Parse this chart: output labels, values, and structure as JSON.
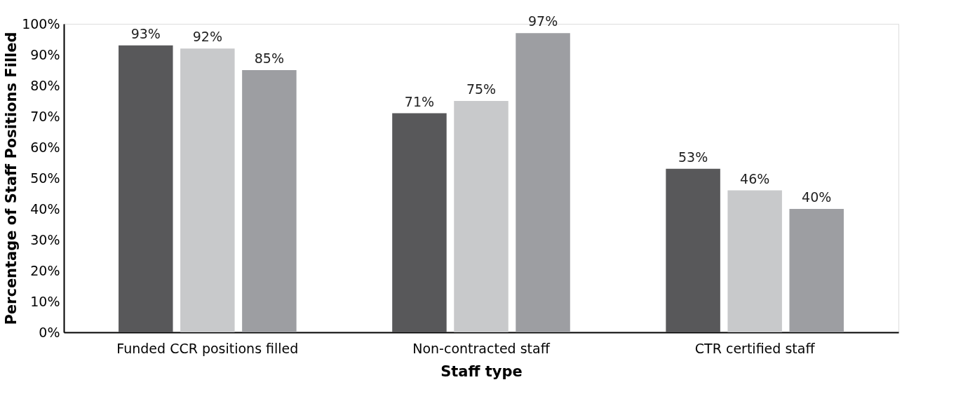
{
  "chart_data": {
    "type": "bar",
    "xlabel": "Staff type",
    "ylabel": "Percentage of Staff Positions Filled",
    "categories": [
      "Funded CCR positions filled",
      "Non-contracted staff",
      "CTR certified staff"
    ],
    "series": [
      {
        "color": "#58585a",
        "values": [
          93,
          71,
          53
        ],
        "value_labels": [
          "93%",
          "71%",
          "53%"
        ]
      },
      {
        "color": "#c8c9cb",
        "values": [
          92,
          75,
          46
        ],
        "value_labels": [
          "92%",
          "75%",
          "46%"
        ]
      },
      {
        "color": "#9d9ea2",
        "values": [
          85,
          97,
          40
        ],
        "value_labels": [
          "85%",
          "97%",
          "40%"
        ]
      }
    ],
    "ylim": [
      0,
      100
    ],
    "yticks": [
      {
        "value": 0,
        "label": "0%"
      },
      {
        "value": 10,
        "label": "10%"
      },
      {
        "value": 20,
        "label": "20%"
      },
      {
        "value": 30,
        "label": "30%"
      },
      {
        "value": 40,
        "label": "40%"
      },
      {
        "value": 50,
        "label": "50%"
      },
      {
        "value": 60,
        "label": "60%"
      },
      {
        "value": 70,
        "label": "70%"
      },
      {
        "value": 80,
        "label": "80%"
      },
      {
        "value": 90,
        "label": "90%"
      },
      {
        "value": 100,
        "label": "100%"
      }
    ],
    "grid": false,
    "legend": false
  }
}
